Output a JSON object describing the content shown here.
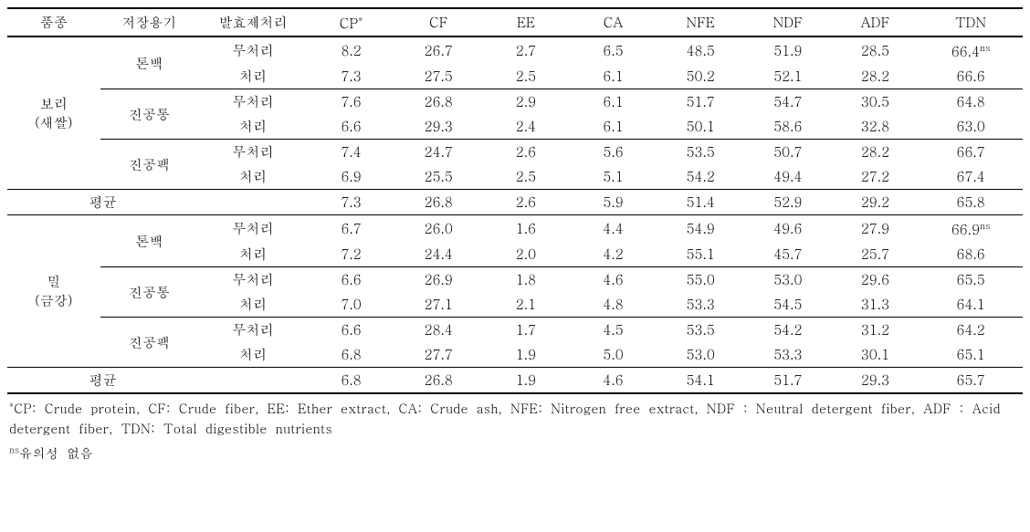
{
  "headers": {
    "variety": "품종",
    "container": "저장용기",
    "treatment": "발효제처리",
    "cp": "CP",
    "cp_sup": "*",
    "cf": "CF",
    "ee": "EE",
    "ca": "CA",
    "nfe": "NFE",
    "ndf": "NDF",
    "adf": "ADF",
    "tdn": "TDN"
  },
  "varieties": {
    "barley_label1": "보리",
    "barley_label2": "(새쌀)",
    "wheat_label1": "밀",
    "wheat_label2": "(금강)"
  },
  "containers": {
    "tonbag": "톤백",
    "vacuum_tub": "진공통",
    "vacuum_pack": "진공팩"
  },
  "treatments": {
    "untreated": "무처리",
    "treated": "처리"
  },
  "average_label": "평균",
  "rows": {
    "b_tonbag_u": {
      "cp": "8.2",
      "cf": "26.7",
      "ee": "2.7",
      "ca": "6.5",
      "nfe": "48.5",
      "ndf": "51.9",
      "adf": "28.5",
      "tdn": "66.4",
      "tdn_sup": "ns"
    },
    "b_tonbag_t": {
      "cp": "7.3",
      "cf": "27.5",
      "ee": "2.5",
      "ca": "6.1",
      "nfe": "50.2",
      "ndf": "52.1",
      "adf": "28.2",
      "tdn": "66.6"
    },
    "b_vactub_u": {
      "cp": "7.6",
      "cf": "26.8",
      "ee": "2.9",
      "ca": "6.1",
      "nfe": "51.7",
      "ndf": "54.7",
      "adf": "30.5",
      "tdn": "64.8"
    },
    "b_vactub_t": {
      "cp": "6.6",
      "cf": "29.3",
      "ee": "2.4",
      "ca": "6.1",
      "nfe": "50.1",
      "ndf": "58.6",
      "adf": "32.8",
      "tdn": "63.0"
    },
    "b_vacpack_u": {
      "cp": "7.4",
      "cf": "24.7",
      "ee": "2.6",
      "ca": "5.6",
      "nfe": "53.5",
      "ndf": "50.7",
      "adf": "28.2",
      "tdn": "66.7"
    },
    "b_vacpack_t": {
      "cp": "6.9",
      "cf": "25.5",
      "ee": "2.5",
      "ca": "5.1",
      "nfe": "54.2",
      "ndf": "49.4",
      "adf": "27.2",
      "tdn": "67.4"
    },
    "b_avg": {
      "cp": "7.3",
      "cf": "26.8",
      "ee": "2.6",
      "ca": "5.9",
      "nfe": "51.4",
      "ndf": "52.9",
      "adf": "29.2",
      "tdn": "65.8"
    },
    "w_tonbag_u": {
      "cp": "6.7",
      "cf": "26.0",
      "ee": "1.6",
      "ca": "4.4",
      "nfe": "54.9",
      "ndf": "49.6",
      "adf": "27.9",
      "tdn": "66.9",
      "tdn_sup": "ns"
    },
    "w_tonbag_t": {
      "cp": "7.2",
      "cf": "24.4",
      "ee": "2.0",
      "ca": "4.2",
      "nfe": "55.1",
      "ndf": "45.7",
      "adf": "25.7",
      "tdn": "68.6"
    },
    "w_vactub_u": {
      "cp": "6.6",
      "cf": "26.9",
      "ee": "1.8",
      "ca": "4.6",
      "nfe": "55.0",
      "ndf": "53.0",
      "adf": "29.6",
      "tdn": "65.5"
    },
    "w_vactub_t": {
      "cp": "7.0",
      "cf": "27.1",
      "ee": "2.1",
      "ca": "4.8",
      "nfe": "53.3",
      "ndf": "54.5",
      "adf": "31.3",
      "tdn": "64.1"
    },
    "w_vacpack_u": {
      "cp": "6.6",
      "cf": "28.4",
      "ee": "1.7",
      "ca": "4.5",
      "nfe": "53.5",
      "ndf": "54.2",
      "adf": "31.2",
      "tdn": "64.2"
    },
    "w_vacpack_t": {
      "cp": "6.8",
      "cf": "27.7",
      "ee": "1.9",
      "ca": "5.0",
      "nfe": "53.0",
      "ndf": "53.3",
      "adf": "30.1",
      "tdn": "65.1"
    },
    "w_avg": {
      "cp": "6.8",
      "cf": "26.8",
      "ee": "1.9",
      "ca": "4.6",
      "nfe": "54.1",
      "ndf": "51.7",
      "adf": "29.3",
      "tdn": "65.7"
    }
  },
  "footnote1_sup": "*",
  "footnote1": "CP: Crude protein, CF: Crude fiber, EE: Ether extract, CA: Crude ash, NFE: Nitrogen free extract, NDF : Neutral detergent fiber, ADF : Acid detergent fiber, TDN: Total digestible nutrients",
  "footnote2_sup": "ns",
  "footnote2": "유의성 없음"
}
